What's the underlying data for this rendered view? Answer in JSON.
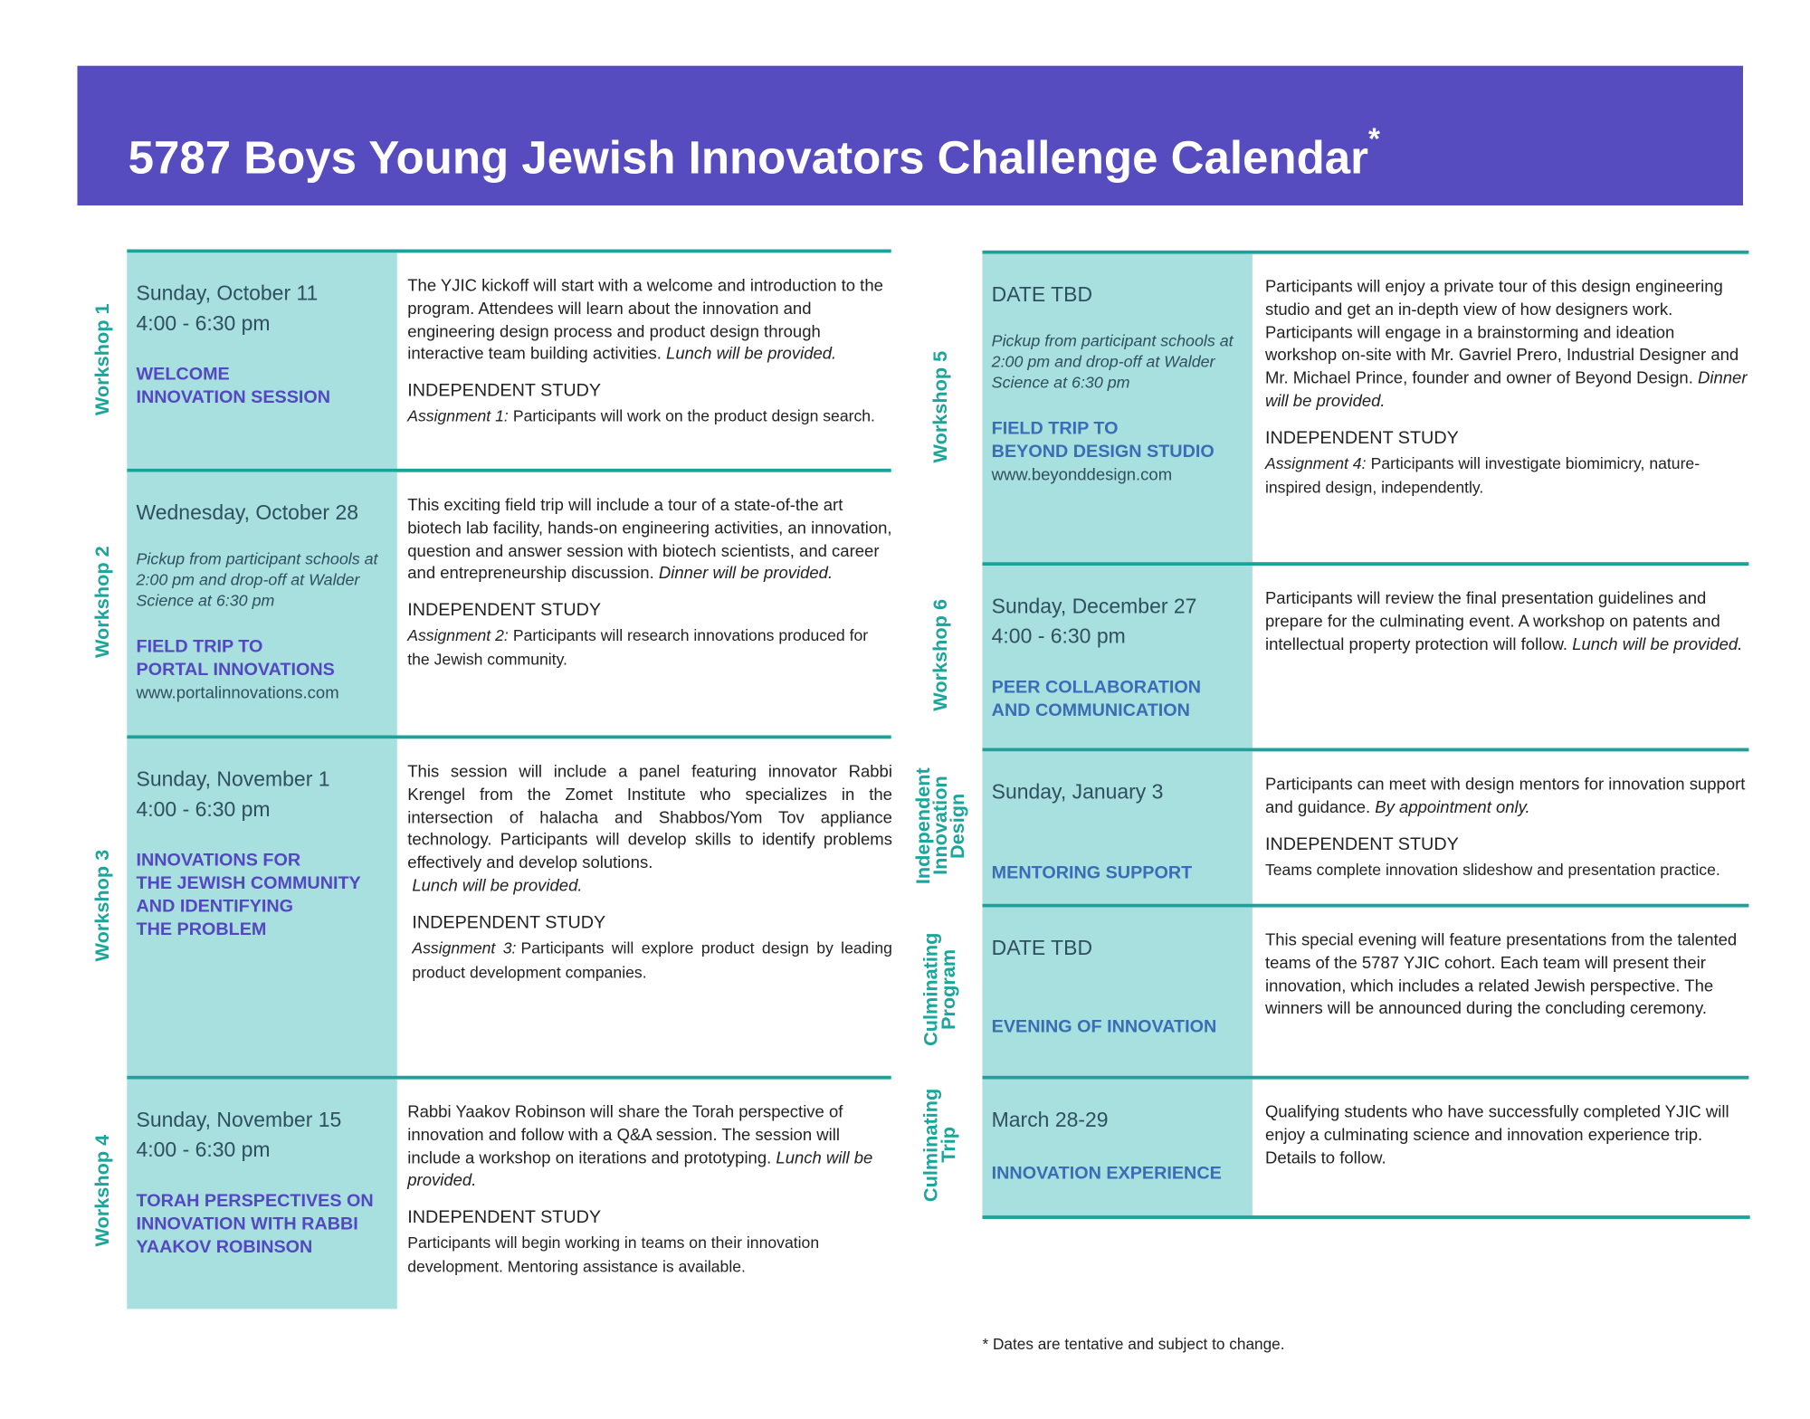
{
  "header": {
    "title": "5787 Boys Young Jewish Innovators Challenge Calendar",
    "mark": "*"
  },
  "entries": [
    {
      "label": [
        "Workshop 1"
      ],
      "date": [
        "Sunday, October 11",
        "4:00 - 6:30 pm"
      ],
      "title": [
        "WELCOME",
        "INNOVATION SESSION"
      ],
      "description": "The YJIC kickoff will start with a welcome and introduction to the program. Attendees will learn about the innovation and engineering design process and product design through interactive team building activities.",
      "note": "Lunch will be provided.",
      "study": "INDEPENDENT STUDY",
      "assignment_label": "Assignment 1:",
      "assignment": "Participants will work on the product design search."
    },
    {
      "label": [
        "Workshop 2"
      ],
      "date": [
        "Wednesday, October 28"
      ],
      "pickup": "Pickup from participant schools at 2:00 pm and drop-off at Walder Science at 6:30 pm",
      "title": [
        "FIELD TRIP TO",
        "PORTAL INNOVATIONS"
      ],
      "url": "www.portalinnovations.com",
      "description": "This exciting field trip will include a tour of a state-of-the art biotech lab facility, hands-on engineering activities, an innovation, question and answer session with biotech scientists, and career and entrepreneurship discussion.",
      "note": "Dinner will be provided.",
      "study": "INDEPENDENT STUDY",
      "assignment_label": "Assignment 2:",
      "assignment": "Participants will research innovations produced for the Jewish community."
    },
    {
      "label": [
        "Workshop 3"
      ],
      "date": [
        "Sunday, November 1",
        "4:00 - 6:30 pm"
      ],
      "title": [
        "INNOVATIONS FOR",
        "THE JEWISH COMMUNITY",
        "AND IDENTIFYING",
        "THE PROBLEM"
      ],
      "description": "This session will include a panel featuring innovator Rabbi Krengel from the Zomet Institute who specializes in the intersection of halacha and Shabbos/Yom Tov appliance technology. Participants will develop skills to identify problems effectively and develop solutions.",
      "note": "Lunch will be provided.",
      "study": "INDEPENDENT STUDY",
      "assignment_label": "Assignment 3:",
      "assignment": "Participants will explore product design by leading product development companies."
    },
    {
      "label": [
        "Workshop 4"
      ],
      "date": [
        "Sunday, November 15",
        "4:00 - 6:30 pm"
      ],
      "title": [
        "TORAH PERSPECTIVES ON",
        "INNOVATION WITH RABBI",
        "YAAKOV ROBINSON"
      ],
      "description": "Rabbi Yaakov Robinson will share the Torah perspective of innovation and follow with a Q&A session. The session will include a workshop on iterations and prototyping.",
      "note": "Lunch will be provided.",
      "study": "INDEPENDENT STUDY",
      "assignment": "Participants will begin working in teams on their innovation development. Mentoring assistance is available."
    },
    {
      "label": [
        "Workshop 5"
      ],
      "date": [
        "DATE TBD"
      ],
      "pickup": "Pickup from participant schools at 2:00 pm and drop-off at Walder Science at 6:30 pm",
      "title": [
        "FIELD TRIP TO",
        "BEYOND DESIGN STUDIO"
      ],
      "url": "www.beyonddesign.com",
      "description": "Participants will enjoy a private tour of this design engineering studio and get an in-depth view of how designers work. Participants will engage in a brainstorming and ideation workshop on-site with Mr. Gavriel Prero, Industrial Designer and Mr. Michael Prince, founder and owner of Beyond Design.",
      "note": "Dinner will be provided.",
      "study": "INDEPENDENT STUDY",
      "assignment_label": "Assignment 4:",
      "assignment": "Participants will investigate biomimicry, nature-inspired design, independently."
    },
    {
      "label": [
        "Workshop 6"
      ],
      "date": [
        "Sunday, December 27",
        "4:00 - 6:30 pm"
      ],
      "title": [
        "PEER COLLABORATION",
        "AND COMMUNICATION"
      ],
      "description": "Participants will review the final presentation guidelines and prepare for the culminating event. A workshop on patents and intellectual property protection will follow.",
      "note": "Lunch will be provided."
    },
    {
      "label": [
        "Independent",
        "Innovation",
        "Design"
      ],
      "date": [
        "Sunday, January 3"
      ],
      "title": [
        "MENTORING SUPPORT"
      ],
      "description": "Participants can meet with design mentors for innovation support and guidance.",
      "note": "By appointment only.",
      "study": "INDEPENDENT STUDY",
      "assignment": "Teams complete innovation slideshow and presentation practice."
    },
    {
      "label": [
        "Culminating",
        "Program"
      ],
      "date": [
        "DATE TBD"
      ],
      "title": [
        "EVENING OF INNOVATION"
      ],
      "description": "This special evening will feature presentations from the talented teams of the 5787 YJIC cohort. Each team will present their innovation, which includes a related Jewish perspective. The winners will be announced during the concluding ceremony."
    },
    {
      "label": [
        "Culminating",
        "Trip"
      ],
      "date": [
        "March 28-29"
      ],
      "title": [
        "INNOVATION EXPERIENCE"
      ],
      "description": "Qualifying students who have successfully completed YJIC will enjoy a culminating science and innovation experience trip. Details to follow."
    }
  ],
  "footnote": "* Dates are tentative and subject to change."
}
